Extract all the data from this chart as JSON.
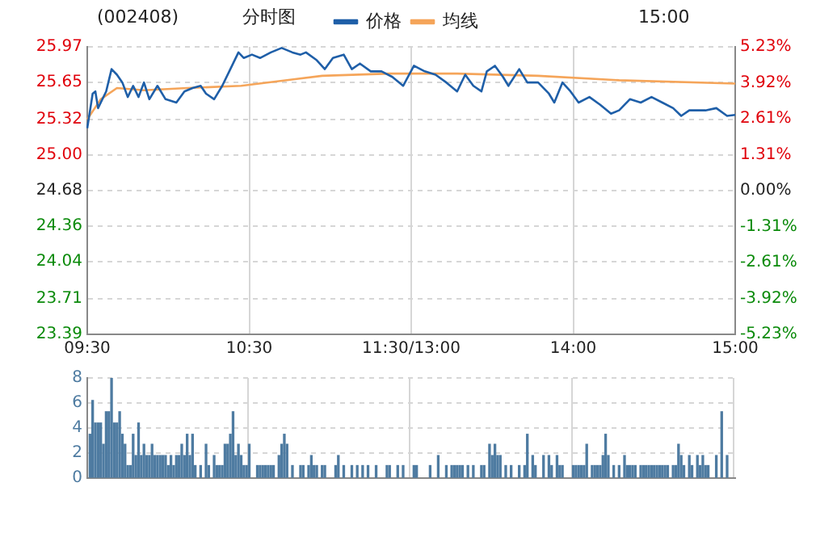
{
  "chart_data": [
    {
      "type": "line",
      "title": "(002408)",
      "subtitle": "分时图",
      "annotations": [
        "15:00"
      ],
      "legend": "top",
      "grid": true,
      "line_style": "solid",
      "marker": "none",
      "categories": [
        "09:30",
        null,
        null,
        null,
        null,
        null,
        null,
        null,
        null,
        null,
        null,
        null,
        null,
        null,
        null,
        null,
        null,
        null,
        null,
        null,
        null,
        null,
        null,
        null,
        null,
        null,
        null,
        null,
        null,
        null,
        null,
        null,
        null,
        null,
        null,
        null,
        null,
        null,
        null,
        null,
        null,
        null,
        null,
        null,
        null,
        null,
        null,
        null,
        null,
        null,
        null,
        null,
        null,
        null,
        null,
        null,
        null,
        null,
        null,
        null,
        "10:30",
        null,
        null,
        null,
        null,
        null,
        null,
        null,
        null,
        null,
        null,
        null,
        null,
        null,
        null,
        null,
        null,
        null,
        null,
        null,
        null,
        null,
        null,
        null,
        null,
        null,
        null,
        null,
        null,
        null,
        null,
        null,
        null,
        null,
        null,
        null,
        null,
        null,
        null,
        null,
        null,
        null,
        null,
        null,
        null,
        null,
        null,
        null,
        null,
        null,
        null,
        null,
        null,
        null,
        null,
        null,
        null,
        null,
        null,
        null,
        "11:30/13:00",
        null,
        null,
        null,
        null,
        null,
        null,
        null,
        null,
        null,
        null,
        null,
        null,
        null,
        null,
        null,
        null,
        null,
        null,
        null,
        null,
        null,
        null,
        null,
        null,
        null,
        null,
        null,
        null,
        null,
        null,
        null,
        null,
        null,
        null,
        null,
        null,
        null,
        null,
        null,
        null,
        null,
        null,
        null,
        null,
        null,
        null,
        null,
        null,
        null,
        null,
        null,
        null,
        null,
        null,
        null,
        null,
        null,
        null,
        null,
        "14:00",
        null,
        null,
        null,
        null,
        null,
        null,
        null,
        null,
        null,
        null,
        null,
        null,
        null,
        null,
        null,
        null,
        null,
        null,
        null,
        null,
        null,
        null,
        null,
        null,
        null,
        null,
        null,
        null,
        null,
        null,
        null,
        null,
        null,
        null,
        null,
        null,
        null,
        null,
        null,
        null,
        null,
        null,
        null,
        null,
        null,
        null,
        null,
        null,
        null,
        null,
        null,
        null,
        null,
        null,
        null,
        null,
        null,
        null,
        null,
        "15:00"
      ],
      "ylim": [
        23.39,
        25.97
      ],
      "yticks": [
        23.39,
        23.71,
        24.04,
        24.36,
        24.68,
        {
          "value": 25,
          "label": "25.00"
        },
        25.32,
        25.65,
        25.97
      ],
      "y2lim": [
        -5.23,
        5.23
      ],
      "y2ticks": [
        {
          "value": -5.23,
          "label": "-5.23%"
        },
        {
          "value": -3.92,
          "label": "-3.92%"
        },
        {
          "value": -2.61,
          "label": "-2.61%"
        },
        {
          "value": -1.31,
          "label": "-1.31%"
        },
        {
          "value": 0,
          "label": "0.00%"
        },
        {
          "value": 1.31,
          "label": "1.31%"
        },
        {
          "value": 2.61,
          "label": "2.61%"
        },
        {
          "value": 3.92,
          "label": "3.92%"
        },
        {
          "value": 5.23,
          "label": "5.23%"
        }
      ],
      "series": [
        {
          "name": "价格",
          "color": "#1f5fa8",
          "values": [
            25.24,
            null,
            25.55,
            25.57,
            25.42,
            null,
            null,
            25.57,
            null,
            25.77,
            null,
            25.72,
            null,
            25.65,
            null,
            25.52,
            null,
            25.62,
            null,
            25.52,
            null,
            25.65,
            null,
            25.5,
            null,
            null,
            25.62,
            null,
            null,
            25.5,
            null,
            null,
            null,
            25.47,
            null,
            null,
            25.57,
            null,
            null,
            25.6,
            null,
            null,
            25.62,
            null,
            25.55,
            null,
            null,
            25.5,
            null,
            null,
            25.62,
            null,
            null,
            25.77,
            null,
            null,
            25.92,
            null,
            25.87,
            null,
            null,
            25.9,
            null,
            null,
            25.87,
            null,
            null,
            null,
            25.92,
            null,
            null,
            null,
            25.96,
            null,
            null,
            null,
            25.92,
            null,
            null,
            25.9,
            null,
            25.92,
            null,
            null,
            null,
            25.85,
            null,
            null,
            25.77,
            null,
            null,
            25.87,
            null,
            null,
            null,
            25.9,
            null,
            null,
            25.77,
            null,
            null,
            25.82,
            null,
            null,
            null,
            25.75,
            null,
            null,
            null,
            25.75,
            null,
            null,
            null,
            25.7,
            null,
            null,
            null,
            25.62,
            null,
            null,
            null,
            25.8,
            null,
            null,
            null,
            25.75,
            null,
            null,
            null,
            25.72,
            null,
            null,
            null,
            25.65,
            null,
            null,
            null,
            25.57,
            null,
            null,
            25.72,
            null,
            null,
            25.62,
            null,
            null,
            25.57,
            null,
            25.75,
            null,
            null,
            25.8,
            null,
            null,
            25.7,
            null,
            25.62,
            null,
            null,
            null,
            25.77,
            null,
            null,
            25.65,
            null,
            null,
            null,
            25.65,
            null,
            null,
            null,
            25.55,
            null,
            25.47,
            null,
            null,
            25.65,
            null,
            null,
            25.57,
            null,
            null,
            25.47,
            null,
            null,
            null,
            25.52,
            null,
            null,
            null,
            25.45,
            null,
            null,
            null,
            25.37,
            null,
            null,
            25.4,
            null,
            null,
            null,
            25.5,
            null,
            null,
            null,
            25.47,
            null,
            null,
            null,
            25.52,
            null,
            null,
            null,
            25.47,
            null,
            null,
            null,
            25.42,
            null,
            null,
            25.35,
            null,
            null,
            25.4,
            null,
            null,
            null,
            null,
            null,
            25.4,
            null,
            null,
            null,
            25.42,
            null,
            null,
            null,
            25.35,
            null,
            null,
            25.36
          ]
        },
        {
          "name": "均线",
          "color": "#f5a55a",
          "values": [
            25.32,
            null,
            null,
            null,
            null,
            25.5,
            null,
            null,
            null,
            null,
            null,
            25.6,
            null,
            null,
            null,
            null,
            null,
            null,
            null,
            null,
            null,
            25.58,
            null,
            null,
            null,
            null,
            null,
            null,
            null,
            null,
            null,
            null,
            null,
            null,
            null,
            null,
            null,
            25.6,
            null,
            null,
            null,
            null,
            null,
            null,
            null,
            null,
            null,
            null,
            null,
            null,
            null,
            null,
            null,
            null,
            null,
            null,
            null,
            25.62,
            null,
            null,
            null,
            null,
            null,
            null,
            null,
            null,
            null,
            null,
            null,
            null,
            null,
            null,
            null,
            null,
            null,
            null,
            null,
            25.68,
            null,
            null,
            null,
            null,
            null,
            null,
            null,
            null,
            null,
            25.71,
            null,
            null,
            null,
            null,
            null,
            null,
            null,
            null,
            null,
            null,
            null,
            null,
            null,
            null,
            null,
            null,
            null,
            null,
            null,
            null,
            null,
            null,
            null,
            null,
            25.73,
            null,
            null,
            null,
            null,
            null,
            null,
            null,
            null,
            null,
            null,
            null,
            null,
            null,
            null,
            null,
            null,
            null,
            null,
            null,
            null,
            null,
            null,
            null,
            null,
            25.73,
            null,
            null,
            null,
            null,
            null,
            null,
            null,
            null,
            null,
            null,
            null,
            null,
            null,
            null,
            null,
            null,
            null,
            null,
            null,
            null,
            null,
            null,
            null,
            null,
            null,
            null,
            null,
            null,
            null,
            25.71,
            null,
            null,
            null,
            null,
            null,
            null,
            null,
            null,
            null,
            null,
            null,
            null,
            null,
            null,
            null,
            null,
            null,
            null,
            null,
            null,
            null,
            null,
            null,
            null,
            null,
            null,
            null,
            null,
            null,
            25.67,
            null,
            null,
            null,
            null,
            null,
            null,
            null,
            null,
            null,
            null,
            null,
            null,
            null,
            null,
            null,
            null,
            null,
            null,
            null,
            null,
            null,
            null,
            null,
            null,
            null,
            null,
            null,
            null,
            null,
            null,
            null,
            null,
            null,
            null,
            null,
            null,
            null,
            null,
            null,
            null,
            null,
            null,
            25.64
          ]
        }
      ]
    },
    {
      "type": "bar",
      "grid": true,
      "tick_labels": "y",
      "color": "#4e7ba1",
      "categories": [
        null,
        null,
        null,
        null,
        null,
        null,
        null,
        null,
        null,
        null,
        null,
        null,
        null,
        null,
        null,
        null,
        null,
        null,
        null,
        null,
        null,
        null,
        null,
        null,
        null,
        null,
        null,
        null,
        null,
        null,
        null,
        null,
        null,
        null,
        null,
        null,
        null,
        null,
        null,
        null,
        null,
        null,
        null,
        null,
        null,
        null,
        null,
        null,
        null,
        null,
        null,
        null,
        null,
        null,
        null,
        null,
        null,
        null,
        null,
        null,
        null,
        null,
        null,
        null,
        null,
        null,
        null,
        null,
        null,
        null,
        null,
        null,
        null,
        null,
        null,
        null,
        null,
        null,
        null,
        null,
        null,
        null,
        null,
        null,
        null,
        null,
        null,
        null,
        null,
        null,
        null,
        null,
        null,
        null,
        null,
        null,
        null,
        null,
        null,
        null,
        null,
        null,
        null,
        null,
        null,
        null,
        null,
        null,
        null,
        null,
        null,
        null,
        null,
        null,
        null,
        null,
        null,
        null,
        null,
        null,
        null,
        null,
        null,
        null,
        null,
        null,
        null,
        null,
        null,
        null,
        null,
        null,
        null,
        null,
        null,
        null,
        null,
        null,
        null,
        null,
        null,
        null,
        null,
        null,
        null,
        null,
        null,
        null,
        null,
        null,
        null,
        null,
        null,
        null,
        null,
        null,
        null,
        null,
        null,
        null,
        null,
        null,
        null,
        null,
        null,
        null,
        null,
        null,
        null,
        null,
        null,
        null,
        null,
        null,
        null,
        null,
        null,
        null,
        null,
        null,
        null,
        null,
        null,
        null,
        null,
        null,
        null,
        null,
        null,
        null,
        null,
        null,
        null,
        null,
        null,
        null,
        null,
        null,
        null,
        null,
        null,
        null,
        null,
        null,
        null,
        null,
        null,
        null,
        null,
        null,
        null,
        null,
        null,
        null,
        null,
        null,
        null,
        null,
        null,
        null,
        null,
        null,
        null,
        null,
        null,
        null,
        null,
        null,
        null,
        null,
        null,
        null,
        null,
        null,
        null,
        null,
        null,
        null,
        null,
        null,
        null
      ],
      "ylim": [
        0,
        8
      ],
      "yticks": [
        0,
        2,
        4,
        6,
        8
      ],
      "values": [
        null,
        3.5,
        6.2,
        4.4,
        4.4,
        4.4,
        2.7,
        5.3,
        5.3,
        8,
        4.4,
        4.4,
        5.3,
        3.5,
        2.7,
        1,
        1,
        3.5,
        1.8,
        4.4,
        1.8,
        2.7,
        1.8,
        1.8,
        2.7,
        1.8,
        1.8,
        1.8,
        1.8,
        1.8,
        1,
        1.8,
        1,
        1.8,
        1.8,
        2.7,
        1.8,
        3.5,
        1.8,
        3.5,
        1,
        null,
        1,
        null,
        2.7,
        1,
        null,
        1.8,
        1,
        1,
        1,
        2.7,
        2.7,
        3.5,
        5.3,
        1.8,
        2.7,
        1.8,
        1,
        1,
        2.7,
        null,
        null,
        1,
        1,
        1,
        1,
        1,
        1,
        1,
        null,
        1.8,
        2.7,
        3.5,
        2.7,
        null,
        1,
        null,
        null,
        1,
        1,
        null,
        1,
        1.8,
        1,
        1,
        null,
        1,
        1,
        null,
        null,
        null,
        1,
        1.8,
        null,
        1,
        null,
        null,
        1,
        null,
        1,
        null,
        1,
        null,
        1,
        null,
        null,
        1,
        null,
        null,
        null,
        1,
        1,
        null,
        null,
        1,
        null,
        1,
        null,
        null,
        null,
        1,
        1,
        null,
        null,
        null,
        null,
        1,
        null,
        null,
        1.8,
        null,
        null,
        1,
        null,
        1,
        1,
        1,
        1,
        1,
        null,
        1,
        null,
        1,
        null,
        null,
        1,
        1,
        null,
        2.7,
        1.8,
        2.7,
        1.8,
        1.8,
        null,
        1,
        null,
        1,
        null,
        null,
        1,
        null,
        1,
        3.5,
        null,
        1.8,
        1,
        null,
        null,
        1.8,
        null,
        1.8,
        1,
        null,
        1.8,
        1,
        1,
        null,
        null,
        null,
        1,
        1,
        1,
        1,
        1,
        2.7,
        null,
        1,
        1,
        1,
        1,
        1.8,
        3.5,
        1.8,
        null,
        1,
        null,
        1,
        null,
        1.8,
        1,
        1,
        1,
        1,
        null,
        1,
        1,
        1,
        1,
        1,
        1,
        1,
        1,
        1,
        1,
        1,
        null,
        1,
        1,
        2.7,
        1.8,
        1,
        null,
        1.8,
        1,
        null,
        1.8,
        1,
        1.8,
        1,
        1,
        null,
        null,
        1.8,
        null,
        5.3,
        null,
        1.8,
        null,
        null,
        null
      ]
    }
  ]
}
